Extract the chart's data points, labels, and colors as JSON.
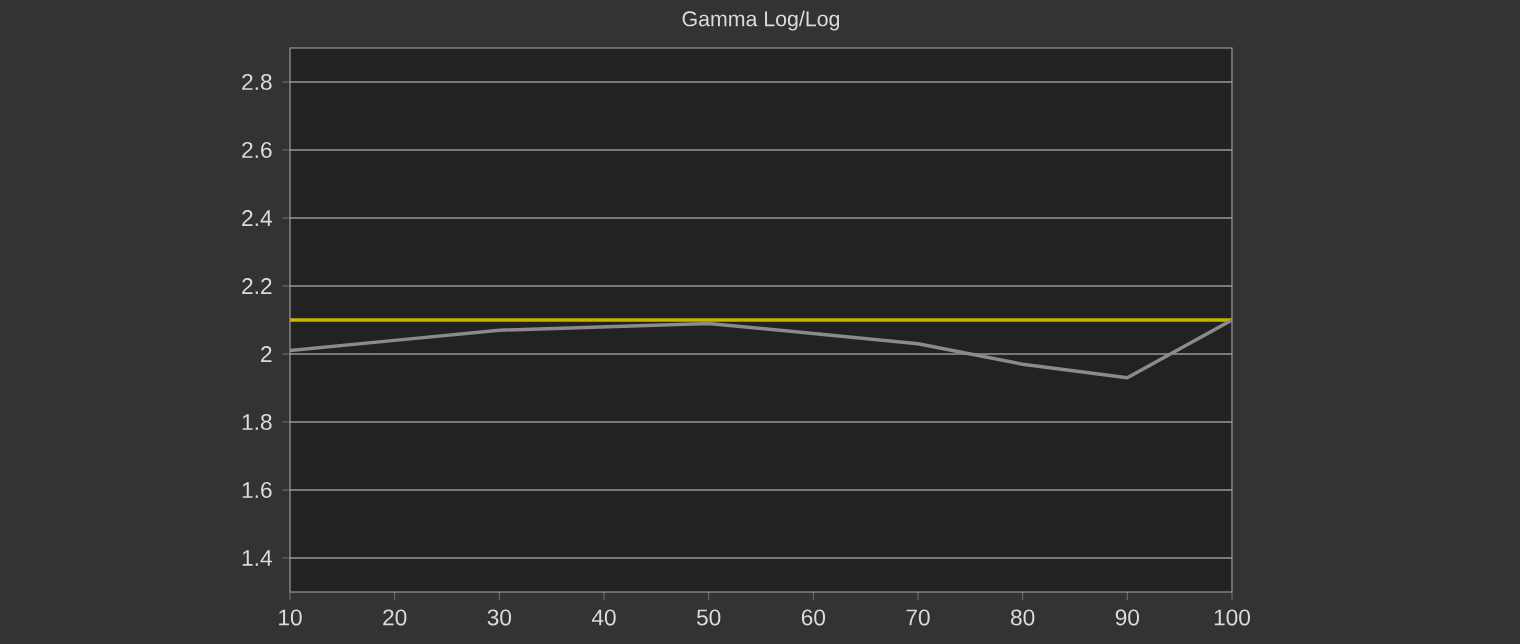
{
  "chart_data": {
    "type": "line",
    "title": "Gamma Log/Log",
    "x": [
      10,
      20,
      30,
      40,
      50,
      60,
      70,
      80,
      90,
      100
    ],
    "series": [
      {
        "color": "#8c8a8c",
        "values": [
          2.01,
          2.04,
          2.07,
          2.08,
          2.09,
          2.06,
          2.03,
          1.97,
          1.93,
          2.1
        ]
      }
    ],
    "xlim": [
      10,
      100
    ],
    "xticks": [
      10,
      20,
      30,
      40,
      50,
      60,
      70,
      80,
      90,
      100
    ],
    "ylim": [
      1.3,
      2.9
    ],
    "yticks": [
      1.4,
      1.6,
      1.8,
      2,
      2.2,
      2.4,
      2.6,
      2.8
    ],
    "grid": "y",
    "marker": "none",
    "line_style": "solid",
    "ref_lines": [
      {
        "axis": "y",
        "value": 2.1,
        "color": "#c8b400"
      }
    ]
  }
}
